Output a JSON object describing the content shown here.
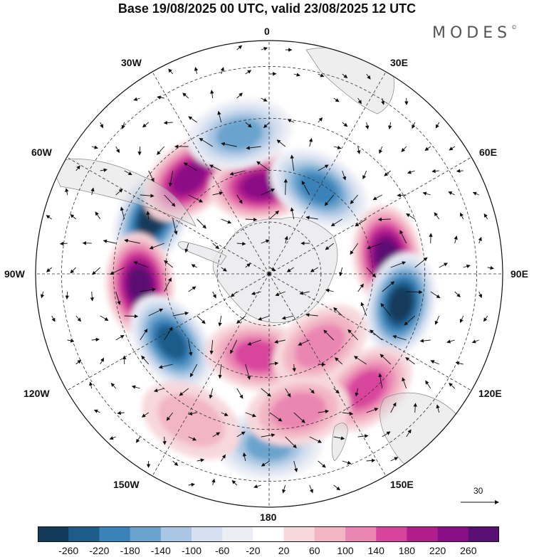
{
  "title": "Base 19/08/2025 00 UTC, valid 23/08/2025 12 UTC",
  "brand": "MODES",
  "brand_mark": "©",
  "longitude_labels": {
    "deg0": "0",
    "e30": "30E",
    "e60": "60E",
    "e90": "90E",
    "e120": "120E",
    "e150": "150E",
    "deg180": "180",
    "w150": "150W",
    "w120": "120W",
    "w90": "90W",
    "w60": "60W",
    "w30": "30W"
  },
  "wind_reference": "30",
  "colorbar": {
    "ticks": [
      "-260",
      "-220",
      "-180",
      "-140",
      "-100",
      "-60",
      "-20",
      "20",
      "60",
      "100",
      "140",
      "180",
      "220",
      "260"
    ],
    "colors": [
      "#143a5a",
      "#1d5b89",
      "#3a82b8",
      "#6aa4ce",
      "#a9c6e2",
      "#d4dfef",
      "#eceef6",
      "#ffffff",
      "#f7d8dc",
      "#f2b5c4",
      "#ea86b2",
      "#d8449c",
      "#b11e8c",
      "#8a0f86",
      "#5a0f72"
    ]
  },
  "anomalies": [
    {
      "sign": "neg",
      "lon": -65,
      "colat_deg": 50,
      "intensity": "-260"
    },
    {
      "sign": "pos",
      "lon": -40,
      "colat_deg": 48,
      "intensity": "240"
    },
    {
      "sign": "pos",
      "lon": -5,
      "colat_deg": 34,
      "intensity": "240"
    },
    {
      "sign": "neg",
      "lon": -12,
      "colat_deg": 55,
      "intensity": "-140"
    },
    {
      "sign": "neg",
      "lon": 30,
      "colat_deg": 38,
      "intensity": "-180"
    },
    {
      "sign": "pos",
      "lon": 82,
      "colat_deg": 46,
      "intensity": "260"
    },
    {
      "sign": "neg",
      "lon": 103,
      "colat_deg": 52,
      "intensity": "-260"
    },
    {
      "sign": "pos",
      "lon": -95,
      "colat_deg": 50,
      "intensity": "260"
    },
    {
      "sign": "neg",
      "lon": -125,
      "colat_deg": 46,
      "intensity": "-220"
    },
    {
      "sign": "pos",
      "lon": -172,
      "colat_deg": 32,
      "intensity": "140"
    },
    {
      "sign": "pos",
      "lon": 145,
      "colat_deg": 34,
      "intensity": "100"
    },
    {
      "sign": "pos",
      "lon": 140,
      "colat_deg": 58,
      "intensity": "140"
    },
    {
      "sign": "neg",
      "lon": 180,
      "colat_deg": 66,
      "intensity": "-140"
    },
    {
      "sign": "pos",
      "lon": 168,
      "colat_deg": 54,
      "intensity": "100"
    },
    {
      "sign": "pos",
      "lon": -152,
      "colat_deg": 64,
      "intensity": "60"
    }
  ]
}
